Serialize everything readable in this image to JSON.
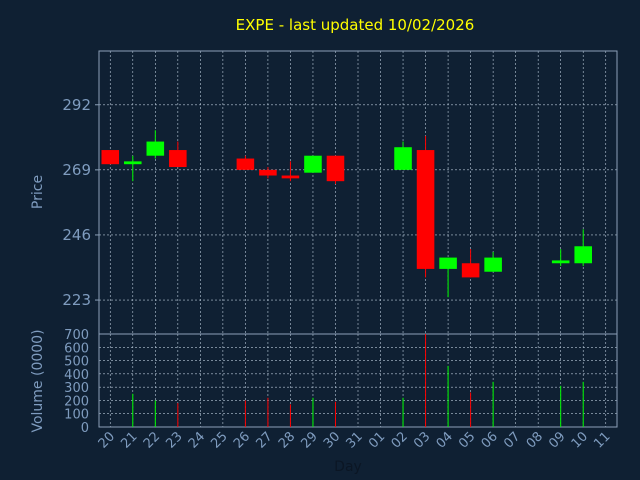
{
  "chart_data": [
    {
      "type": "candlestick",
      "title": "EXPE - last updated 10/02/2026",
      "ylabel": "Price",
      "yticks": [
        223,
        246,
        269,
        292
      ],
      "ylim": [
        211,
        311
      ],
      "grid": true,
      "colors": {
        "up": "#00ff00",
        "down": "#ff0000",
        "title": "#ffff00",
        "axis_text": "#7f9cbf",
        "background": "#0f2033"
      },
      "x": [
        "20",
        "21",
        "22",
        "23",
        "24",
        "25",
        "26",
        "27",
        "28",
        "29",
        "30",
        "31",
        "01",
        "02",
        "03",
        "04",
        "05",
        "06",
        "07",
        "08",
        "09",
        "10",
        "11"
      ],
      "candles": [
        {
          "day": "20",
          "open": 276,
          "high": 276,
          "low": 271,
          "close": 271
        },
        {
          "day": "21",
          "open": 271,
          "high": 274,
          "low": 265,
          "close": 272
        },
        {
          "day": "22",
          "open": 274,
          "high": 283,
          "low": 273,
          "close": 279
        },
        {
          "day": "23",
          "open": 276,
          "high": 279,
          "low": 270,
          "close": 270
        },
        {
          "day": "26",
          "open": 273,
          "high": 274,
          "low": 269,
          "close": 269
        },
        {
          "day": "27",
          "open": 269,
          "high": 270,
          "low": 266,
          "close": 267
        },
        {
          "day": "28",
          "open": 267,
          "high": 272,
          "low": 265,
          "close": 266
        },
        {
          "day": "29",
          "open": 268,
          "high": 274,
          "low": 268,
          "close": 274
        },
        {
          "day": "30",
          "open": 274,
          "high": 274,
          "low": 264,
          "close": 265
        },
        {
          "day": "02",
          "open": 269,
          "high": 279,
          "low": 269,
          "close": 277
        },
        {
          "day": "03",
          "open": 276,
          "high": 281,
          "low": 231,
          "close": 234
        },
        {
          "day": "04",
          "open": 234,
          "high": 238,
          "low": 224,
          "close": 238
        },
        {
          "day": "05",
          "open": 236,
          "high": 241,
          "low": 231,
          "close": 231
        },
        {
          "day": "06",
          "open": 233,
          "high": 240,
          "low": 233,
          "close": 238
        },
        {
          "day": "09",
          "open": 236,
          "high": 241,
          "low": 235,
          "close": 237
        },
        {
          "day": "10",
          "open": 236,
          "high": 248,
          "low": 235,
          "close": 242
        }
      ]
    },
    {
      "type": "bar",
      "ylabel": "Volume (0000)",
      "xlabel": "Day",
      "yticks": [
        0,
        100,
        200,
        300,
        400,
        500,
        600,
        700
      ],
      "ylim": [
        0,
        700
      ],
      "grid": true,
      "x": [
        "20",
        "21",
        "22",
        "23",
        "24",
        "25",
        "26",
        "27",
        "28",
        "29",
        "30",
        "31",
        "01",
        "02",
        "03",
        "04",
        "05",
        "06",
        "07",
        "08",
        "09",
        "10",
        "11"
      ],
      "bars": [
        {
          "day": "20",
          "value": 0,
          "dir": "down"
        },
        {
          "day": "21",
          "value": 250,
          "dir": "up"
        },
        {
          "day": "22",
          "value": 200,
          "dir": "up"
        },
        {
          "day": "23",
          "value": 180,
          "dir": "down"
        },
        {
          "day": "26",
          "value": 200,
          "dir": "down"
        },
        {
          "day": "27",
          "value": 220,
          "dir": "down"
        },
        {
          "day": "28",
          "value": 170,
          "dir": "down"
        },
        {
          "day": "29",
          "value": 220,
          "dir": "up"
        },
        {
          "day": "30",
          "value": 190,
          "dir": "down"
        },
        {
          "day": "02",
          "value": 220,
          "dir": "up"
        },
        {
          "day": "03",
          "value": 700,
          "dir": "down"
        },
        {
          "day": "04",
          "value": 460,
          "dir": "up"
        },
        {
          "day": "05",
          "value": 260,
          "dir": "down"
        },
        {
          "day": "06",
          "value": 340,
          "dir": "up"
        },
        {
          "day": "09",
          "value": 310,
          "dir": "up"
        },
        {
          "day": "10",
          "value": 340,
          "dir": "up"
        }
      ]
    }
  ]
}
